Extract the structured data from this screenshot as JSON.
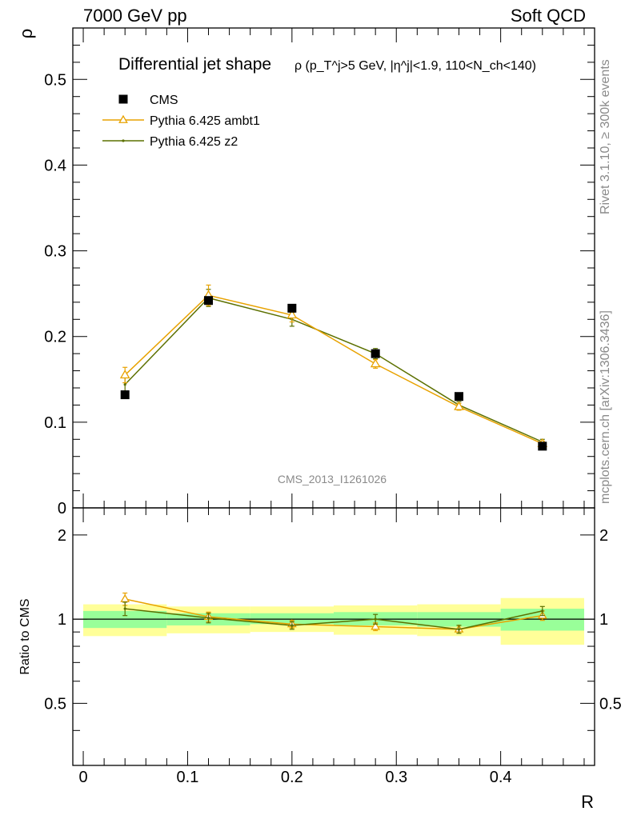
{
  "header": {
    "left": "7000 GeV pp",
    "right": "Soft QCD"
  },
  "side_labels": {
    "rivet": "Rivet 3.1.10, ≥ 300k events",
    "mcplots": "mcplots.cern.ch [arXiv:1306.3436]"
  },
  "colors": {
    "cms": "#000000",
    "ambt1": "#e8a200",
    "z2": "#5c7000",
    "band_inner": "#99ff99",
    "band_outer": "#ffff99",
    "side_text": "#8a8a8a"
  },
  "chart_data": [
    {
      "type": "scatter",
      "title": {
        "main": "Differential jet shape",
        "tail": "ρ (p_T^j>5 GeV, |η^j|<1.9, 110<N_ch<140)"
      },
      "analysis": "CMS_2013_I1261026",
      "xlabel": "R",
      "ylabel": "ρ",
      "xlim": [
        -0.01,
        0.49
      ],
      "ylim": [
        0,
        0.56
      ],
      "x_ticks": [
        0,
        0.1,
        0.2,
        0.3,
        0.4
      ],
      "x_tick_labels": [
        "0",
        "0.1",
        "0.2",
        "0.3",
        "0.4"
      ],
      "y_ticks": [
        0,
        0.1,
        0.2,
        0.3,
        0.4,
        0.5
      ],
      "y_tick_labels": [
        "0",
        "0.1",
        "0.2",
        "0.3",
        "0.4",
        "0.5"
      ],
      "legend_position": "top-left",
      "series": [
        {
          "name": "CMS",
          "marker": "square",
          "x": [
            0.04,
            0.12,
            0.2,
            0.28,
            0.36,
            0.44
          ],
          "y": [
            0.132,
            0.242,
            0.233,
            0.18,
            0.13,
            0.072
          ],
          "yerr": [
            0.003,
            0.004,
            0.003,
            0.003,
            0.002,
            0.002
          ]
        },
        {
          "name": "Pythia 6.425 ambt1",
          "marker": "triangle-open",
          "x": [
            0.04,
            0.12,
            0.2,
            0.28,
            0.36,
            0.44
          ],
          "y": [
            0.155,
            0.248,
            0.225,
            0.168,
            0.118,
            0.075
          ],
          "yerr": [
            0.009,
            0.012,
            0.008,
            0.005,
            0.004,
            0.003
          ]
        },
        {
          "name": "Pythia 6.425 z2",
          "marker": "dot",
          "x": [
            0.04,
            0.12,
            0.2,
            0.28,
            0.36,
            0.44
          ],
          "y": [
            0.144,
            0.245,
            0.22,
            0.18,
            0.12,
            0.077
          ],
          "yerr": [
            0.008,
            0.01,
            0.008,
            0.006,
            0.004,
            0.003
          ]
        }
      ]
    },
    {
      "type": "line",
      "ylabel": "Ratio to CMS",
      "xlabel": "R",
      "xlim": [
        -0.01,
        0.49
      ],
      "ylim": [
        0.3,
        2.5
      ],
      "scale": "log",
      "y_ticks": [
        0.5,
        1,
        2
      ],
      "y_tick_labels": [
        "0.5",
        "1",
        "2"
      ],
      "reference": 1,
      "bands": {
        "x_edges": [
          0,
          0.08,
          0.16,
          0.24,
          0.32,
          0.4,
          0.48
        ],
        "inner_low": [
          0.93,
          0.95,
          0.96,
          0.95,
          0.94,
          0.91
        ],
        "inner_high": [
          1.07,
          1.05,
          1.05,
          1.06,
          1.06,
          1.09
        ],
        "outer_low": [
          0.87,
          0.89,
          0.9,
          0.88,
          0.87,
          0.81
        ],
        "outer_high": [
          1.13,
          1.11,
          1.11,
          1.12,
          1.13,
          1.19
        ]
      },
      "series": [
        {
          "name": "Pythia 6.425 ambt1",
          "x": [
            0.04,
            0.12,
            0.2,
            0.28,
            0.36,
            0.44
          ],
          "y": [
            1.18,
            1.02,
            0.96,
            0.94,
            0.92,
            1.03
          ],
          "yerr": [
            0.06,
            0.04,
            0.03,
            0.03,
            0.03,
            0.04
          ]
        },
        {
          "name": "Pythia 6.425 z2",
          "x": [
            0.04,
            0.12,
            0.2,
            0.28,
            0.36,
            0.44
          ],
          "y": [
            1.09,
            1.01,
            0.95,
            1.0,
            0.92,
            1.07
          ],
          "yerr": [
            0.06,
            0.04,
            0.03,
            0.04,
            0.03,
            0.04
          ]
        }
      ]
    }
  ]
}
